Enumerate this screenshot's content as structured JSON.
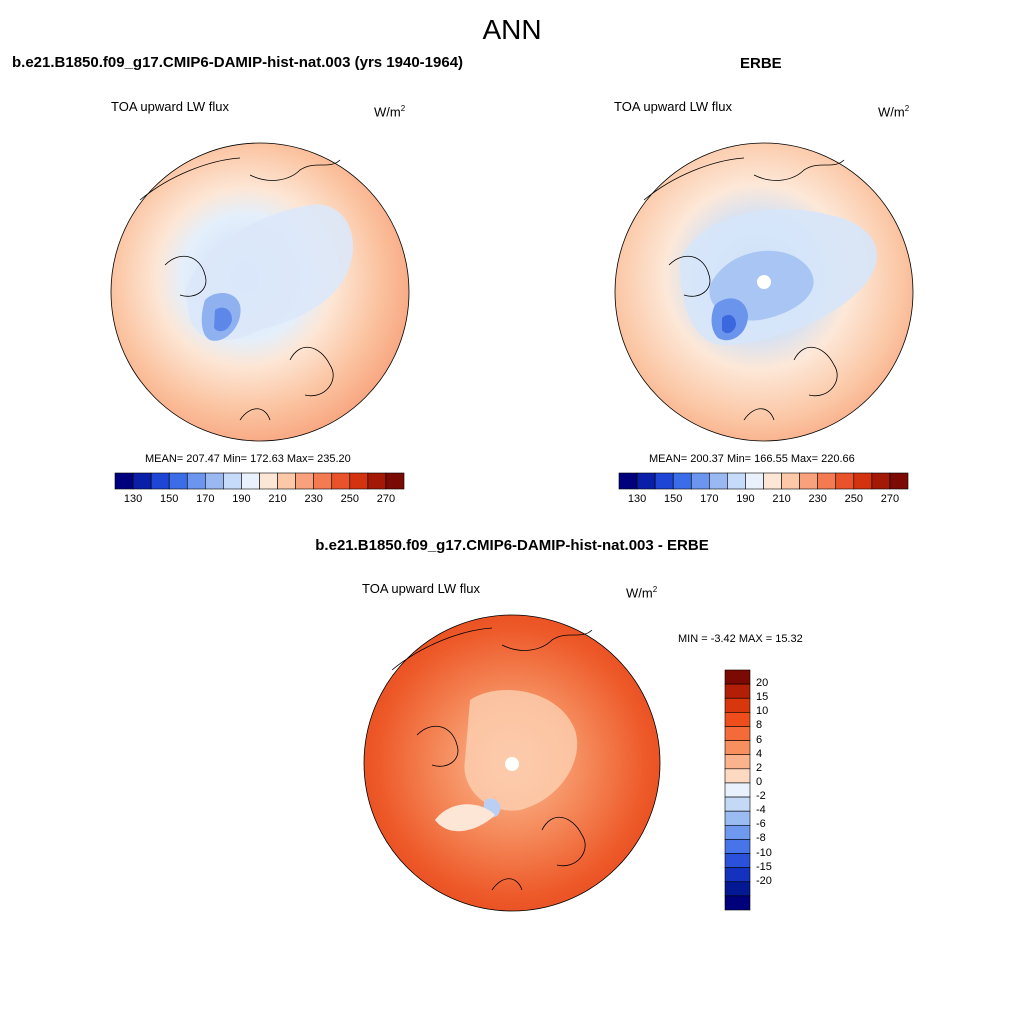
{
  "figure": {
    "title": "ANN"
  },
  "panels": [
    {
      "title": "b.e21.B1850.f09_g17.CMIP6-DAMIP-hist-nat.003 (yrs 1940-1964)",
      "variable": "TOA upward LW flux",
      "units_base": "W/m",
      "units_exp": "2",
      "stats": "MEAN= 207.47  Min= 172.63  Max= 235.20"
    },
    {
      "title": "ERBE",
      "variable": "TOA upward LW flux",
      "units_base": "W/m",
      "units_exp": "2",
      "stats": "MEAN= 200.37  Min= 166.55  Max= 220.66"
    },
    {
      "title": "b.e21.B1850.f09_g17.CMIP6-DAMIP-hist-nat.003 - ERBE",
      "variable": "TOA upward LW flux",
      "units_base": "W/m",
      "units_exp": "2",
      "stats": "MIN =  -3.42 MAX =  15.32"
    }
  ],
  "colorbars": {
    "absolute": {
      "colors": [
        "#00007f",
        "#0a1fa8",
        "#1f45d6",
        "#3c6de8",
        "#6b95ee",
        "#9ab8f2",
        "#c6dafa",
        "#e9f2fc",
        "#fde6d5",
        "#fcc8a8",
        "#f9a07c",
        "#f47a52",
        "#e9522a",
        "#d3340f",
        "#a41906",
        "#7a0a03"
      ],
      "tick_labels": [
        "130",
        "150",
        "170",
        "190",
        "210",
        "230",
        "250",
        "270"
      ]
    },
    "difference": {
      "colors": [
        "#7a0a03",
        "#b31e06",
        "#d8360c",
        "#ef4d1c",
        "#f46b3a",
        "#f7905e",
        "#fab38c",
        "#fdd9c2",
        "#e8f1fc",
        "#c4d9f6",
        "#9bbcf2",
        "#6e99ee",
        "#4774e8",
        "#2a50dc",
        "#1432bd",
        "#031892",
        "#00007a"
      ],
      "tick_labels": [
        "20",
        "15",
        "10",
        "8",
        "6",
        "4",
        "2",
        "0",
        "-2",
        "-4",
        "-6",
        "-8",
        "-10",
        "-15",
        "-20"
      ]
    }
  }
}
